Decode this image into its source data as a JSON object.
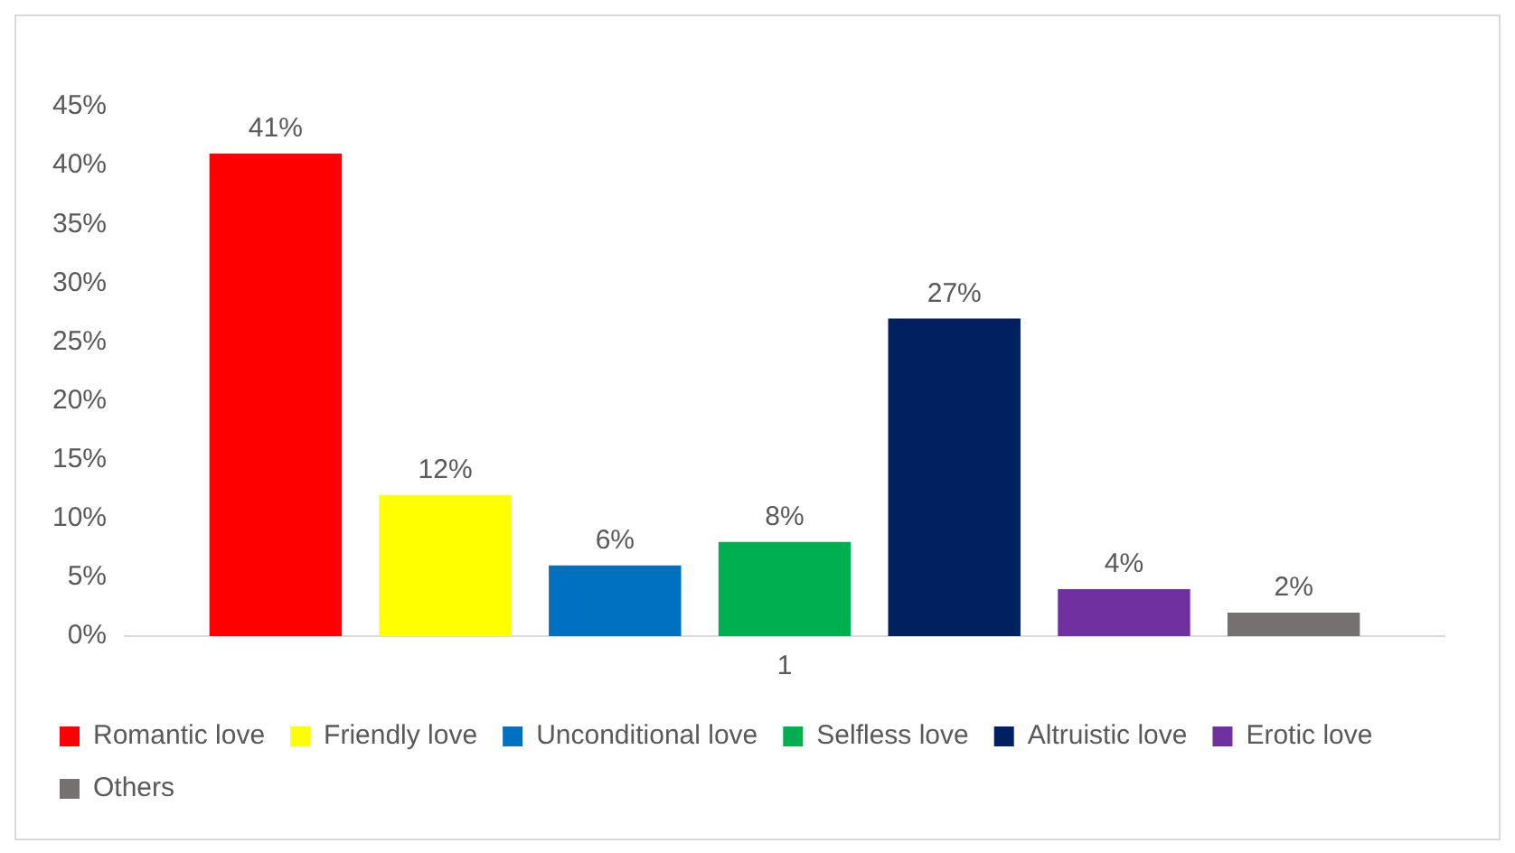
{
  "chart_data": {
    "type": "bar",
    "categories": [
      "1"
    ],
    "series": [
      {
        "name": "Romantic love",
        "color": "#ff0000",
        "values": [
          41
        ],
        "value_labels": [
          "41%"
        ]
      },
      {
        "name": "Friendly love",
        "color": "#ffff00",
        "values": [
          12
        ],
        "value_labels": [
          "12%"
        ]
      },
      {
        "name": "Unconditional love",
        "color": "#0070c0",
        "values": [
          6
        ],
        "value_labels": [
          "6%"
        ]
      },
      {
        "name": "Selfless love",
        "color": "#00b050",
        "values": [
          8
        ],
        "value_labels": [
          "8%"
        ]
      },
      {
        "name": "Altruistic love",
        "color": "#002060",
        "values": [
          27
        ],
        "value_labels": [
          "27%"
        ]
      },
      {
        "name": "Erotic love",
        "color": "#7030a0",
        "values": [
          4
        ],
        "value_labels": [
          "4%"
        ]
      },
      {
        "name": "Others",
        "color": "#767171",
        "values": [
          2
        ],
        "value_labels": [
          "2%"
        ]
      }
    ],
    "ylim": [
      0,
      45
    ],
    "yticks": [
      {
        "value": 0,
        "label": "0%"
      },
      {
        "value": 5,
        "label": "5%"
      },
      {
        "value": 10,
        "label": "10%"
      },
      {
        "value": 15,
        "label": "15%"
      },
      {
        "value": 20,
        "label": "20%"
      },
      {
        "value": 25,
        "label": "25%"
      },
      {
        "value": 30,
        "label": "30%"
      },
      {
        "value": 35,
        "label": "35%"
      },
      {
        "value": 40,
        "label": "40%"
      },
      {
        "value": 45,
        "label": "45%"
      }
    ],
    "grid": false,
    "legend": "bottom"
  }
}
